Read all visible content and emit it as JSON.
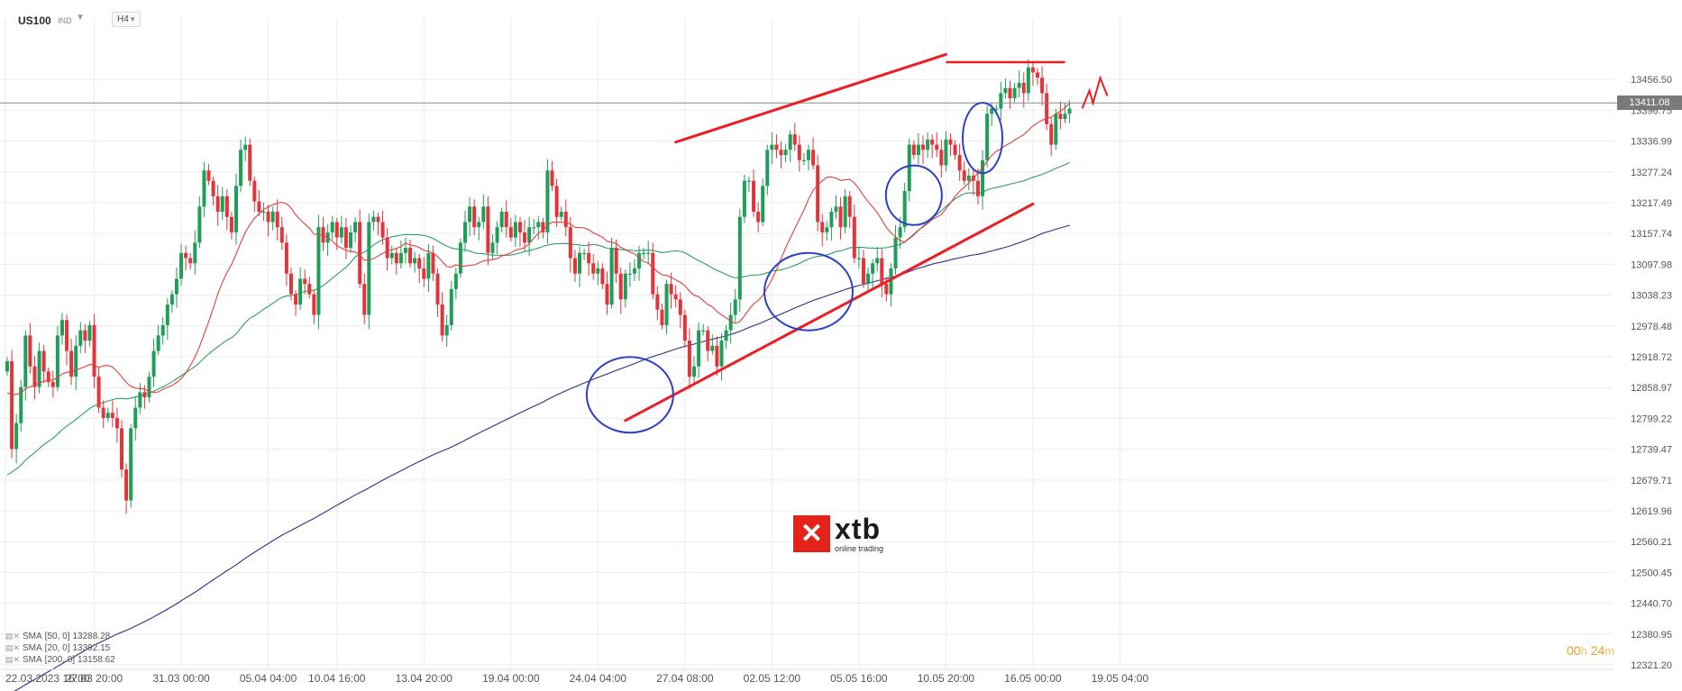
{
  "header": {
    "symbol": "US100",
    "symbol_type": "IND",
    "timeframe": "H4"
  },
  "current_price_label": "13411.08",
  "countdown": {
    "h": "00",
    "h_unit": "h",
    "m": "24",
    "m_unit": "m"
  },
  "logo": {
    "word": "xtb",
    "tagline": "online trading",
    "brand_color": "#e2231a"
  },
  "legend": [
    {
      "label": "SMA",
      "params": "[50, 0]",
      "value": "13288.28"
    },
    {
      "label": "SMA",
      "params": "[20, 0]",
      "value": "13392.15"
    },
    {
      "label": "SMA",
      "params": "[200, 0]",
      "value": "13158.62"
    }
  ],
  "colors": {
    "up": "#1f9e5a",
    "down": "#e2343b",
    "sma20": "#e0403a",
    "sma50": "#2f9e63",
    "sma200": "#2a2f8f",
    "annotation_line": "#ee1c25",
    "annotation_circle": "#2d3fc8",
    "grid": "#ececec",
    "axis_text": "#555555",
    "price_line": "#8a8a8a"
  },
  "chart_data": {
    "type": "candlestick",
    "timeframe": "H4",
    "ylim": [
      12321.2,
      13516.25
    ],
    "y_ticks": [
      "13456.50",
      "13396.75",
      "13336.99",
      "13277.24",
      "13217.49",
      "13157.74",
      "13097.98",
      "13038.23",
      "12978.48",
      "12918.72",
      "12858.97",
      "12799.22",
      "12739.47",
      "12679.71",
      "12619.96",
      "12560.21",
      "12500.45",
      "12440.70",
      "12380.95",
      "12321.20"
    ],
    "x_ticks": [
      "22.03.2023  16:00",
      "27.03  20:00",
      "31.03  00:00",
      "05.04  04:00",
      "10.04  16:00",
      "13.04  20:00",
      "19.04  00:00",
      "24.04  04:00",
      "27.04  08:00",
      "02.05  12:00",
      "05.05  16:00",
      "10.05  20:00",
      "16.05  00:00",
      "19.05  04:00"
    ],
    "close": [
      12910,
      12740,
      12790,
      12860,
      12960,
      12900,
      12860,
      12930,
      12890,
      12870,
      12860,
      12960,
      12990,
      12930,
      12880,
      12940,
      12970,
      12950,
      12980,
      12880,
      12820,
      12800,
      12810,
      12800,
      12780,
      12700,
      12640,
      12780,
      12820,
      12850,
      12840,
      12880,
      12930,
      12960,
      12980,
      13020,
      13040,
      13070,
      13120,
      13110,
      13100,
      13140,
      13210,
      13280,
      13260,
      13230,
      13200,
      13230,
      13190,
      13160,
      13250,
      13320,
      13330,
      13260,
      13220,
      13200,
      13200,
      13180,
      13200,
      13170,
      13140,
      13080,
      13040,
      13020,
      13070,
      13060,
      13040,
      13000,
      13170,
      13140,
      13160,
      13180,
      13150,
      13170,
      13130,
      13160,
      13180,
      13060,
      13000,
      13180,
      13190,
      13180,
      13150,
      13110,
      13120,
      13100,
      13120,
      13130,
      13100,
      13110,
      13090,
      13070,
      13120,
      13080,
      13020,
      12960,
      12980,
      13050,
      13080,
      13140,
      13180,
      13210,
      13170,
      13180,
      13210,
      13120,
      13140,
      13170,
      13200,
      13170,
      13150,
      13180,
      13160,
      13140,
      13170,
      13170,
      13180,
      13160,
      13280,
      13250,
      13190,
      13200,
      13170,
      13110,
      13080,
      13120,
      13120,
      13100,
      13080,
      13090,
      13060,
      13020,
      13130,
      13080,
      13030,
      13080,
      13080,
      13090,
      13120,
      13120,
      13120,
      13040,
      13010,
      12980,
      13060,
      13040,
      13030,
      13000,
      12950,
      12880,
      12900,
      12970,
      12970,
      12930,
      12940,
      12900,
      12950,
      12970,
      13000,
      13030,
      13190,
      13260,
      13260,
      13200,
      13180,
      13250,
      13320,
      13330,
      13320,
      13310,
      13320,
      13350,
      13330,
      13300,
      13300,
      13320,
      13290,
      13180,
      13160,
      13170,
      13200,
      13210,
      13170,
      13230,
      13190,
      13110,
      13110,
      13060,
      13080,
      13100,
      13110,
      13060,
      13040,
      13090,
      13150,
      13170,
      13240,
      13330,
      13310,
      13330,
      13320,
      13340,
      13330,
      13320,
      13290,
      13340,
      13330,
      13310,
      13280,
      13260,
      13270,
      13260,
      13230,
      13300,
      13390,
      13400,
      13400,
      13430,
      13440,
      13420,
      13440,
      13450,
      13430,
      13480,
      13470,
      13460,
      13430,
      13370,
      13330,
      13390,
      13380,
      13390,
      13400
    ],
    "series": [
      {
        "name": "SMA [20, 0]",
        "period": 20
      },
      {
        "name": "SMA [50, 0]",
        "period": 50
      },
      {
        "name": "SMA [200, 0]",
        "period": 200
      }
    ]
  },
  "annotations": {
    "channel_upper": [
      [
        "26.04 22:00",
        13335
      ],
      [
        "10.05 20:00",
        13505
      ]
    ],
    "channel_lower": [
      [
        "25.04 04:00",
        12795
      ],
      [
        "16.05 00:00",
        13215
      ]
    ],
    "resistance": [
      [
        "10.05 20:00",
        13490
      ],
      [
        "17.05 04:00",
        13490
      ]
    ],
    "circles": [
      {
        "center": [
          "25.04 08:00",
          12845
        ]
      },
      {
        "center": [
          "03.05 20:00",
          13045
        ]
      },
      {
        "center": [
          "09.05 16:00",
          13232
        ]
      },
      {
        "center": [
          "12.05 04:00",
          13343
        ]
      }
    ]
  }
}
